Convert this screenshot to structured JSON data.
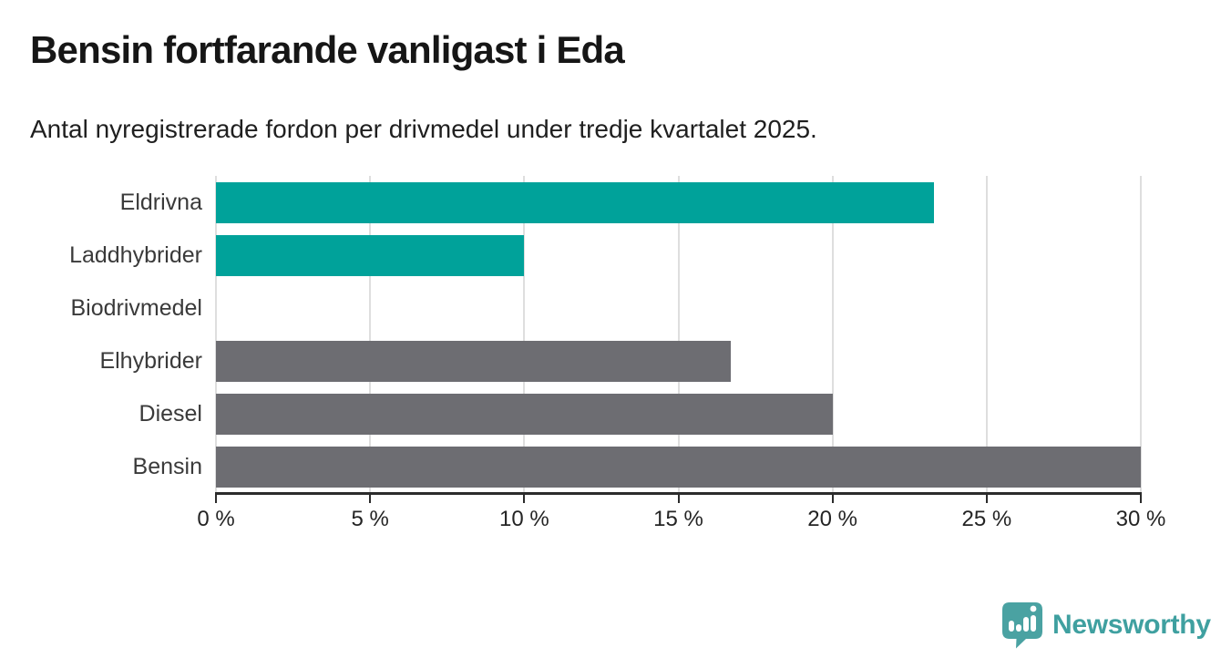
{
  "title": "Bensin fortfarande vanligast i Eda",
  "subtitle": "Antal nyregistrerade fordon per drivmedel under tredje kvartalet 2025.",
  "chart_data": {
    "type": "bar",
    "orientation": "horizontal",
    "title": "Bensin fortfarande vanligast i Eda",
    "subtitle": "Antal nyregistrerade fordon per drivmedel under tredje kvartalet 2025.",
    "categories": [
      "Eldrivna",
      "Laddhybrider",
      "Biodrivmedel",
      "Elhybrider",
      "Diesel",
      "Bensin"
    ],
    "values": [
      23.3,
      10.0,
      0,
      16.7,
      20.0,
      30.0
    ],
    "unit": "%",
    "xlim": [
      0,
      30
    ],
    "x_ticks": [
      0,
      5,
      10,
      15,
      20,
      25,
      30
    ],
    "x_tick_labels": [
      "0 %",
      "5 %",
      "10 %",
      "15 %",
      "20 %",
      "25 %",
      "30 %"
    ],
    "bar_colors": [
      "#00a29a",
      "#00a29a",
      "#6d6d72",
      "#6d6d72",
      "#6d6d72",
      "#6d6d72"
    ],
    "grid": true,
    "legend": "none"
  },
  "colors": {
    "teal": "#00a29a",
    "gray": "#6d6d72",
    "gridline": "#dedede",
    "axis": "#2b2b2b",
    "title_text": "#161616",
    "label_text": "#3a3a3a",
    "logo_teal": "#4aa2a2",
    "logo_text_teal": "#3fa0a0"
  },
  "branding": {
    "logo_text": "Newsworthy",
    "logo_icon": "bar-chart-speech-bubble-icon"
  }
}
